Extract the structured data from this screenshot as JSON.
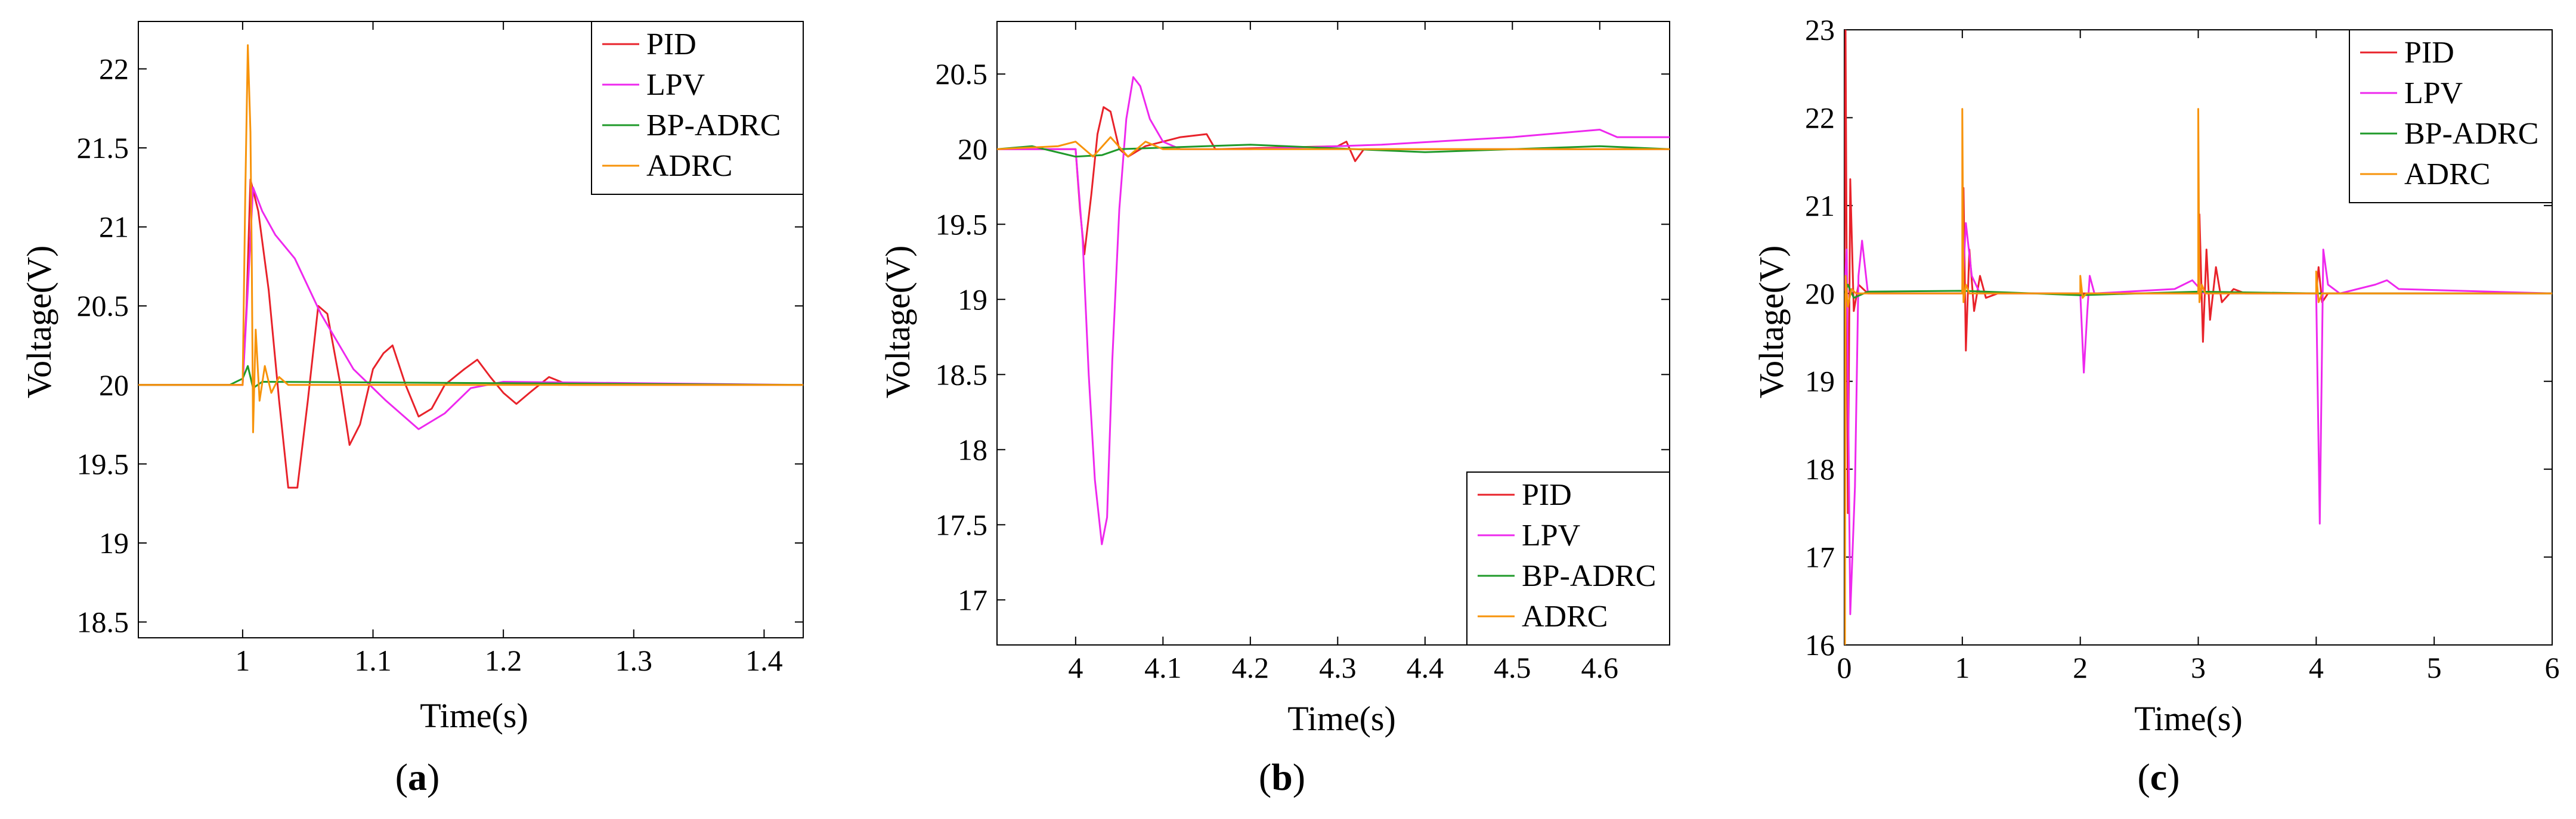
{
  "figure": {
    "captions": [
      "(a)",
      "(b)",
      "(c)"
    ],
    "caption_letters": [
      "a",
      "b",
      "c"
    ]
  },
  "colors": {
    "PID": "#e8222a",
    "LPV": "#ee28ee",
    "BP-ADRC": "#1f9a2a",
    "ADRC": "#f7930a",
    "axis": "#000000"
  },
  "chart_data": [
    {
      "type": "line",
      "id": "a",
      "xlabel": "Time(s)",
      "ylabel": "Voltage(V)",
      "xlim": [
        0.92,
        1.43
      ],
      "ylim": [
        18.4,
        22.3
      ],
      "xticks": [
        1,
        1.1,
        1.2,
        1.3,
        1.4
      ],
      "xtick_labels": [
        "1",
        "1.1",
        "1.2",
        "1.3",
        "1.4"
      ],
      "yticks": [
        18.5,
        19,
        19.5,
        20,
        20.5,
        21,
        21.5,
        22
      ],
      "ytick_labels": [
        "18.5",
        "19",
        "19.5",
        "20",
        "20.5",
        "21",
        "21.5",
        "22"
      ],
      "legend": [
        "PID",
        "LPV",
        "BP-ADRC",
        "ADRC"
      ],
      "legend_position": "top-right",
      "series": [
        {
          "name": "PID",
          "points": [
            [
              0.92,
              20
            ],
            [
              1.0,
              20
            ],
            [
              1.003,
              20.5
            ],
            [
              1.006,
              21.3
            ],
            [
              1.012,
              21.1
            ],
            [
              1.02,
              20.6
            ],
            [
              1.028,
              19.9
            ],
            [
              1.035,
              19.35
            ],
            [
              1.042,
              19.35
            ],
            [
              1.05,
              19.9
            ],
            [
              1.058,
              20.5
            ],
            [
              1.065,
              20.45
            ],
            [
              1.075,
              20.0
            ],
            [
              1.082,
              19.62
            ],
            [
              1.09,
              19.75
            ],
            [
              1.1,
              20.1
            ],
            [
              1.108,
              20.2
            ],
            [
              1.115,
              20.25
            ],
            [
              1.125,
              20.0
            ],
            [
              1.135,
              19.8
            ],
            [
              1.145,
              19.85
            ],
            [
              1.155,
              20.0
            ],
            [
              1.17,
              20.1
            ],
            [
              1.18,
              20.16
            ],
            [
              1.19,
              20.05
            ],
            [
              1.2,
              19.95
            ],
            [
              1.21,
              19.88
            ],
            [
              1.22,
              19.95
            ],
            [
              1.235,
              20.05
            ],
            [
              1.25,
              20.0
            ],
            [
              1.43,
              20.0
            ]
          ]
        },
        {
          "name": "LPV",
          "points": [
            [
              0.92,
              20
            ],
            [
              1.0,
              20
            ],
            [
              1.004,
              20.6
            ],
            [
              1.008,
              21.25
            ],
            [
              1.015,
              21.1
            ],
            [
              1.025,
              20.95
            ],
            [
              1.04,
              20.8
            ],
            [
              1.06,
              20.45
            ],
            [
              1.085,
              20.1
            ],
            [
              1.11,
              19.9
            ],
            [
              1.135,
              19.72
            ],
            [
              1.155,
              19.82
            ],
            [
              1.175,
              19.98
            ],
            [
              1.2,
              20.02
            ],
            [
              1.43,
              20.0
            ]
          ]
        },
        {
          "name": "BP-ADRC",
          "points": [
            [
              0.92,
              20
            ],
            [
              0.99,
              20
            ],
            [
              1.0,
              20.04
            ],
            [
              1.004,
              20.12
            ],
            [
              1.008,
              19.98
            ],
            [
              1.015,
              20.02
            ],
            [
              1.43,
              20.0
            ]
          ]
        },
        {
          "name": "ADRC",
          "points": [
            [
              0.92,
              20
            ],
            [
              1.0,
              20
            ],
            [
              1.002,
              21.2
            ],
            [
              1.004,
              22.15
            ],
            [
              1.006,
              21.6
            ],
            [
              1.007,
              20.8
            ],
            [
              1.008,
              19.7
            ],
            [
              1.01,
              20.35
            ],
            [
              1.013,
              19.9
            ],
            [
              1.017,
              20.12
            ],
            [
              1.022,
              19.95
            ],
            [
              1.028,
              20.05
            ],
            [
              1.035,
              20.0
            ],
            [
              1.43,
              20.0
            ]
          ]
        }
      ]
    },
    {
      "type": "line",
      "id": "b",
      "xlabel": "Time(s)",
      "ylabel": "Voltage(V)",
      "xlim": [
        3.91,
        4.68
      ],
      "ylim": [
        16.7,
        20.85
      ],
      "xticks": [
        4,
        4.1,
        4.2,
        4.3,
        4.4,
        4.5,
        4.6
      ],
      "xtick_labels": [
        "4",
        "4.1",
        "4.2",
        "4.3",
        "4.4",
        "4.5",
        "4.6"
      ],
      "yticks": [
        17,
        17.5,
        18,
        18.5,
        19,
        19.5,
        20,
        20.5
      ],
      "ytick_labels": [
        "17",
        "17.5",
        "18",
        "18.5",
        "19",
        "19.5",
        "20",
        "20.5"
      ],
      "legend": [
        "PID",
        "LPV",
        "BP-ADRC",
        "ADRC"
      ],
      "legend_position": "bottom-right",
      "series": [
        {
          "name": "PID",
          "points": [
            [
              3.91,
              20
            ],
            [
              4.0,
              20
            ],
            [
              4.005,
              19.6
            ],
            [
              4.01,
              19.3
            ],
            [
              4.018,
              19.7
            ],
            [
              4.025,
              20.1
            ],
            [
              4.032,
              20.28
            ],
            [
              4.04,
              20.25
            ],
            [
              4.05,
              20.0
            ],
            [
              4.06,
              19.95
            ],
            [
              4.08,
              20.02
            ],
            [
              4.12,
              20.08
            ],
            [
              4.15,
              20.1
            ],
            [
              4.16,
              20.0
            ],
            [
              4.3,
              20.02
            ],
            [
              4.31,
              20.05
            ],
            [
              4.32,
              19.92
            ],
            [
              4.33,
              20.0
            ],
            [
              4.68,
              20.0
            ]
          ]
        },
        {
          "name": "LPV",
          "points": [
            [
              3.91,
              20
            ],
            [
              4.0,
              20
            ],
            [
              4.008,
              19.4
            ],
            [
              4.015,
              18.5
            ],
            [
              4.022,
              17.8
            ],
            [
              4.03,
              17.37
            ],
            [
              4.036,
              17.55
            ],
            [
              4.042,
              18.6
            ],
            [
              4.05,
              19.6
            ],
            [
              4.058,
              20.2
            ],
            [
              4.066,
              20.48
            ],
            [
              4.074,
              20.42
            ],
            [
              4.085,
              20.2
            ],
            [
              4.1,
              20.05
            ],
            [
              4.12,
              20.0
            ],
            [
              4.2,
              20.0
            ],
            [
              4.35,
              20.03
            ],
            [
              4.5,
              20.08
            ],
            [
              4.6,
              20.13
            ],
            [
              4.62,
              20.08
            ],
            [
              4.68,
              20.08
            ]
          ]
        },
        {
          "name": "BP-ADRC",
          "points": [
            [
              3.91,
              20
            ],
            [
              3.95,
              20.02
            ],
            [
              4.0,
              19.95
            ],
            [
              4.03,
              19.96
            ],
            [
              4.05,
              20.0
            ],
            [
              4.2,
              20.03
            ],
            [
              4.4,
              19.98
            ],
            [
              4.6,
              20.02
            ],
            [
              4.68,
              20.0
            ]
          ]
        },
        {
          "name": "ADRC",
          "points": [
            [
              3.91,
              20
            ],
            [
              3.98,
              20.02
            ],
            [
              4.0,
              20.05
            ],
            [
              4.02,
              19.95
            ],
            [
              4.04,
              20.08
            ],
            [
              4.06,
              19.95
            ],
            [
              4.08,
              20.05
            ],
            [
              4.1,
              20.0
            ],
            [
              4.68,
              20.0
            ]
          ]
        }
      ]
    },
    {
      "type": "line",
      "id": "c",
      "xlabel": "Time(s)",
      "ylabel": "Voltage(V)",
      "xlim": [
        0,
        6
      ],
      "ylim": [
        16,
        23
      ],
      "xticks": [
        0,
        1,
        2,
        3,
        4,
        5,
        6
      ],
      "xtick_labels": [
        "0",
        "1",
        "2",
        "3",
        "4",
        "5",
        "6"
      ],
      "yticks": [
        16,
        17,
        18,
        19,
        20,
        21,
        22,
        23
      ],
      "ytick_labels": [
        "16",
        "17",
        "18",
        "19",
        "20",
        "21",
        "22",
        "23"
      ],
      "legend": [
        "PID",
        "LPV",
        "BP-ADRC",
        "ADRC"
      ],
      "legend_position": "top-right",
      "series": [
        {
          "name": "PID",
          "points": [
            [
              0,
              20
            ],
            [
              0.01,
              23
            ],
            [
              0.03,
              17.5
            ],
            [
              0.05,
              21.3
            ],
            [
              0.08,
              19.8
            ],
            [
              0.12,
              20.1
            ],
            [
              0.2,
              20.0
            ],
            [
              1.0,
              20.0
            ],
            [
              1.01,
              21.2
            ],
            [
              1.03,
              19.35
            ],
            [
              1.06,
              20.5
            ],
            [
              1.1,
              19.8
            ],
            [
              1.15,
              20.2
            ],
            [
              1.2,
              19.95
            ],
            [
              1.3,
              20.0
            ],
            [
              3.0,
              20.0
            ],
            [
              3.01,
              20.9
            ],
            [
              3.04,
              19.45
            ],
            [
              3.07,
              20.5
            ],
            [
              3.1,
              19.7
            ],
            [
              3.15,
              20.3
            ],
            [
              3.2,
              19.9
            ],
            [
              3.3,
              20.05
            ],
            [
              3.4,
              20.0
            ],
            [
              4.0,
              20.0
            ],
            [
              4.02,
              20.3
            ],
            [
              4.05,
              19.9
            ],
            [
              4.1,
              20.0
            ],
            [
              6,
              20.0
            ]
          ]
        },
        {
          "name": "LPV",
          "points": [
            [
              0,
              20
            ],
            [
              0.02,
              20.5
            ],
            [
              0.05,
              16.35
            ],
            [
              0.09,
              17.8
            ],
            [
              0.12,
              20.2
            ],
            [
              0.15,
              20.6
            ],
            [
              0.2,
              20.0
            ],
            [
              1.0,
              20.0
            ],
            [
              1.03,
              20.8
            ],
            [
              1.08,
              20.2
            ],
            [
              1.15,
              20.0
            ],
            [
              2.0,
              20.0
            ],
            [
              2.03,
              19.1
            ],
            [
              2.06,
              19.8
            ],
            [
              2.08,
              20.2
            ],
            [
              2.12,
              20.0
            ],
            [
              2.8,
              20.05
            ],
            [
              2.95,
              20.15
            ],
            [
              3.05,
              20.0
            ],
            [
              4.0,
              20.0
            ],
            [
              4.03,
              17.38
            ],
            [
              4.06,
              20.5
            ],
            [
              4.1,
              20.1
            ],
            [
              4.2,
              20.0
            ],
            [
              4.5,
              20.1
            ],
            [
              4.6,
              20.15
            ],
            [
              4.7,
              20.05
            ],
            [
              6,
              20.0
            ]
          ]
        },
        {
          "name": "BP-ADRC",
          "points": [
            [
              0,
              20
            ],
            [
              0.03,
              20.1
            ],
            [
              0.08,
              19.95
            ],
            [
              0.2,
              20.02
            ],
            [
              1.0,
              20.03
            ],
            [
              2.0,
              19.98
            ],
            [
              3.0,
              20.02
            ],
            [
              4.0,
              20.0
            ],
            [
              6,
              20.0
            ]
          ]
        },
        {
          "name": "ADRC",
          "points": [
            [
              0,
              20
            ],
            [
              0.005,
              16.0
            ],
            [
              0.01,
              20.2
            ],
            [
              0.03,
              19.85
            ],
            [
              0.06,
              20.05
            ],
            [
              0.1,
              20.0
            ],
            [
              1.0,
              20.0
            ],
            [
              1.0,
              22.1
            ],
            [
              1.01,
              19.9
            ],
            [
              1.03,
              20.1
            ],
            [
              1.06,
              20.0
            ],
            [
              2.0,
              20.0
            ],
            [
              2.0,
              20.2
            ],
            [
              2.02,
              19.95
            ],
            [
              2.05,
              20.0
            ],
            [
              3.0,
              20.0
            ],
            [
              3.0,
              22.1
            ],
            [
              3.01,
              19.9
            ],
            [
              3.03,
              20.1
            ],
            [
              3.06,
              20.0
            ],
            [
              4.0,
              20.0
            ],
            [
              4.0,
              20.25
            ],
            [
              4.02,
              19.9
            ],
            [
              4.05,
              20.0
            ],
            [
              6,
              20.0
            ]
          ]
        }
      ]
    }
  ]
}
